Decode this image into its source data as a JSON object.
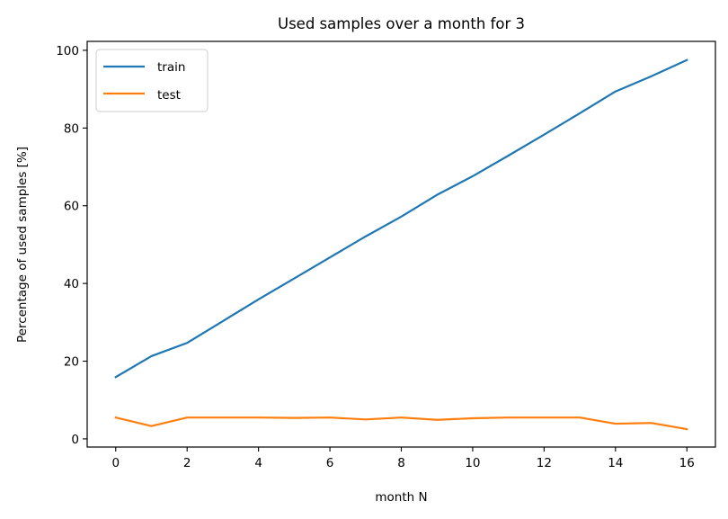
{
  "chart_data": {
    "type": "line",
    "title": "Used samples over a month for 3",
    "xlabel": "month N",
    "ylabel": "Percentage of used samples [%]",
    "x": [
      0,
      1,
      2,
      3,
      4,
      5,
      6,
      7,
      8,
      9,
      10,
      11,
      12,
      13,
      14,
      15,
      16
    ],
    "xlim": [
      -0.8,
      16.8
    ],
    "ylim": [
      -2.1,
      102.3
    ],
    "xticks": [
      0,
      2,
      4,
      6,
      8,
      10,
      12,
      14,
      16
    ],
    "yticks": [
      0,
      20,
      40,
      60,
      80,
      100
    ],
    "grid": false,
    "legend_position": "upper-left",
    "series": [
      {
        "name": "train",
        "color": "#1f77b4",
        "values": [
          15.9,
          21.3,
          24.7,
          30.3,
          35.9,
          41.3,
          46.7,
          52.1,
          57.2,
          62.8,
          67.6,
          72.9,
          78.3,
          83.8,
          89.4,
          93.3,
          97.5
        ]
      },
      {
        "name": "test",
        "color": "#ff7f0e",
        "values": [
          5.5,
          3.3,
          5.5,
          5.5,
          5.5,
          5.4,
          5.5,
          5.0,
          5.5,
          4.9,
          5.3,
          5.5,
          5.5,
          5.5,
          3.9,
          4.1,
          2.5
        ]
      }
    ]
  }
}
